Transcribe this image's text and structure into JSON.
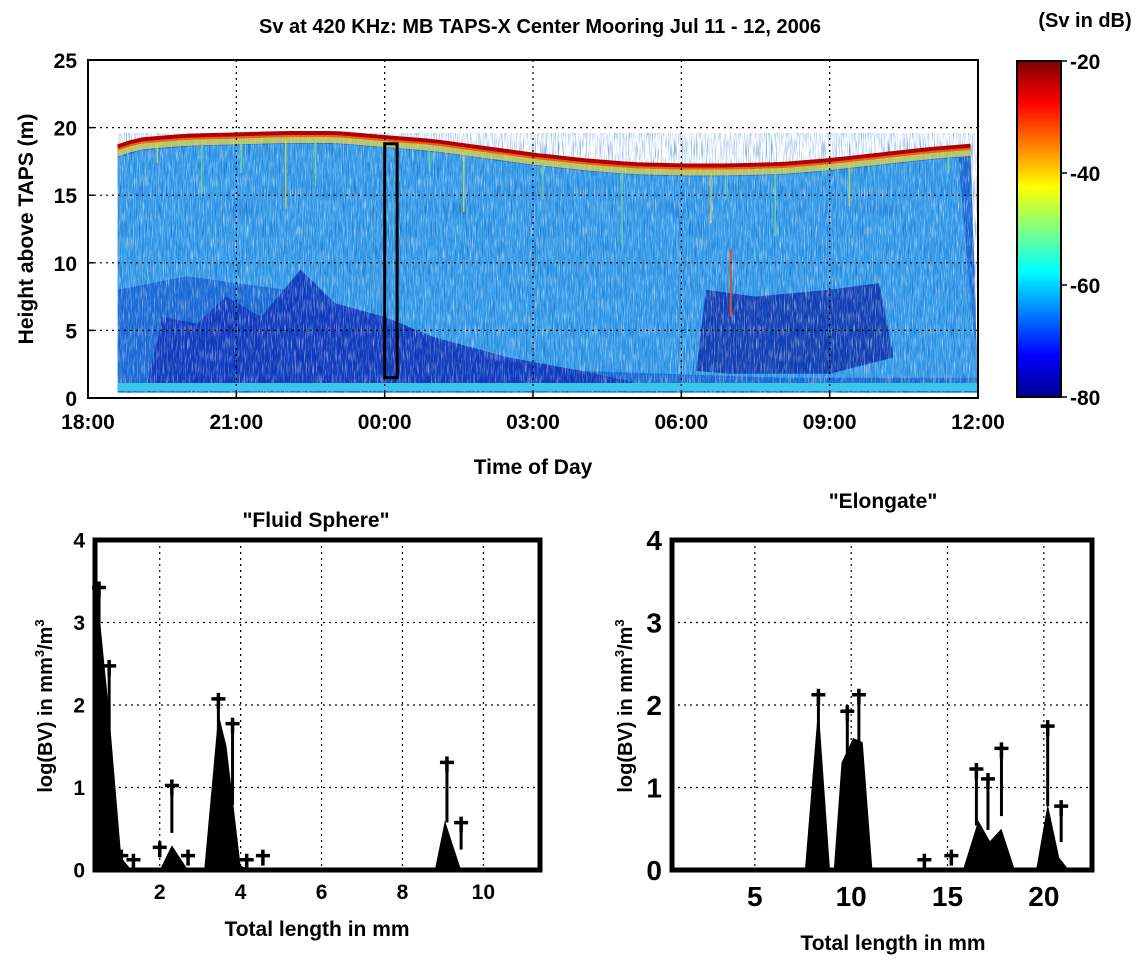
{
  "chart_data": [
    {
      "type": "heatmap",
      "title": "Sv at 420 KHz: MB TAPS-X Center Mooring Jul 11 - 12, 2006",
      "xlabel": "Time of Day",
      "ylabel": "Height above TAPS (m)",
      "x_ticks": [
        "18:00",
        "21:00",
        "00:00",
        "03:00",
        "06:00",
        "09:00",
        "12:00"
      ],
      "y_ticks": [
        "0",
        "5",
        "10",
        "15",
        "20",
        "25"
      ],
      "xlim": [
        "18:00",
        "12:00"
      ],
      "ylim": [
        0,
        25
      ],
      "grid": true,
      "surface_height_m": [
        [
          18.6,
          18.6
        ],
        [
          19.0,
          19.1
        ],
        [
          20.0,
          19.4
        ],
        [
          21.0,
          19.5
        ],
        [
          22.0,
          19.6
        ],
        [
          23.0,
          19.6
        ],
        [
          24.0,
          19.3
        ],
        [
          25.0,
          19.0
        ],
        [
          26.0,
          18.5
        ],
        [
          27.0,
          18.0
        ],
        [
          28.0,
          17.6
        ],
        [
          29.0,
          17.3
        ],
        [
          30.0,
          17.2
        ],
        [
          31.0,
          17.2
        ],
        [
          32.0,
          17.3
        ],
        [
          33.0,
          17.6
        ],
        [
          34.0,
          18.0
        ],
        [
          35.0,
          18.4
        ],
        [
          36.0,
          18.7
        ]
      ],
      "marked_window": {
        "time_start": "00:00",
        "time_end": "00:15",
        "height_range": [
          1.5,
          18.8
        ]
      },
      "colorbar": {
        "label": "(Sv in dB)",
        "ticks": [
          "-20",
          "-40",
          "-60",
          "-80"
        ],
        "range": [
          -80,
          -20
        ]
      }
    },
    {
      "type": "area",
      "title": "\"Fluid Sphere\"",
      "xlabel": "Total length in mm",
      "ylabel_parts": [
        "log(BV) in mm",
        "3",
        "/m",
        "3"
      ],
      "x_ticks": [
        "2",
        "4",
        "6",
        "8",
        "10"
      ],
      "y_ticks": [
        "0",
        "1",
        "2",
        "3",
        "4"
      ],
      "xlim": [
        0.4,
        11.4
      ],
      "ylim": [
        0,
        4
      ],
      "grid": true,
      "area": [
        [
          0.4,
          0
        ],
        [
          0.45,
          3.4
        ],
        [
          0.75,
          1.9
        ],
        [
          1.05,
          0.15
        ],
        [
          1.3,
          0
        ],
        [
          2.0,
          0
        ],
        [
          2.3,
          0.3
        ],
        [
          2.7,
          0
        ],
        [
          3.1,
          0
        ],
        [
          3.45,
          1.9
        ],
        [
          3.65,
          1.5
        ],
        [
          4.0,
          0.05
        ],
        [
          4.3,
          0
        ],
        [
          8.8,
          0
        ],
        [
          9.05,
          0.6
        ],
        [
          9.45,
          0
        ],
        [
          11.4,
          0
        ]
      ],
      "markers": [
        [
          0.5,
          3.4
        ],
        [
          0.75,
          2.45
        ],
        [
          1.05,
          0.15
        ],
        [
          1.35,
          0.1
        ],
        [
          2.0,
          0.25
        ],
        [
          2.3,
          1.0
        ],
        [
          2.7,
          0.15
        ],
        [
          3.45,
          2.05
        ],
        [
          3.8,
          1.75
        ],
        [
          4.15,
          0.1
        ],
        [
          4.55,
          0.15
        ],
        [
          9.1,
          1.28
        ],
        [
          9.45,
          0.55
        ]
      ]
    },
    {
      "type": "area",
      "title": "\"Elongate\"",
      "xlabel": "Total length in mm",
      "ylabel_parts": [
        "log(BV) in mm",
        "3",
        "/m",
        "3"
      ],
      "x_ticks": [
        "5",
        "10",
        "15",
        "20"
      ],
      "y_ticks": [
        "0",
        "1",
        "2",
        "3",
        "4"
      ],
      "xlim": [
        0.7,
        22.5
      ],
      "ylim": [
        0,
        4
      ],
      "grid": true,
      "area": [
        [
          0.7,
          0
        ],
        [
          7.6,
          0
        ],
        [
          8.3,
          2.0
        ],
        [
          8.9,
          0
        ],
        [
          9.1,
          0
        ],
        [
          9.5,
          1.3
        ],
        [
          10.1,
          1.6
        ],
        [
          10.6,
          1.55
        ],
        [
          11.1,
          0
        ],
        [
          15.8,
          0
        ],
        [
          16.6,
          0.6
        ],
        [
          17.2,
          0.35
        ],
        [
          17.8,
          0.5
        ],
        [
          18.5,
          0
        ],
        [
          19.6,
          0
        ],
        [
          20.2,
          0.8
        ],
        [
          20.8,
          0.15
        ],
        [
          21.3,
          0
        ],
        [
          22.5,
          0
        ]
      ],
      "markers": [
        [
          8.3,
          2.1
        ],
        [
          9.8,
          1.9
        ],
        [
          10.4,
          2.1
        ],
        [
          13.8,
          0.1
        ],
        [
          15.2,
          0.15
        ],
        [
          16.5,
          1.2
        ],
        [
          17.1,
          1.08
        ],
        [
          17.8,
          1.45
        ],
        [
          20.2,
          1.72
        ],
        [
          20.9,
          0.75
        ]
      ]
    }
  ]
}
